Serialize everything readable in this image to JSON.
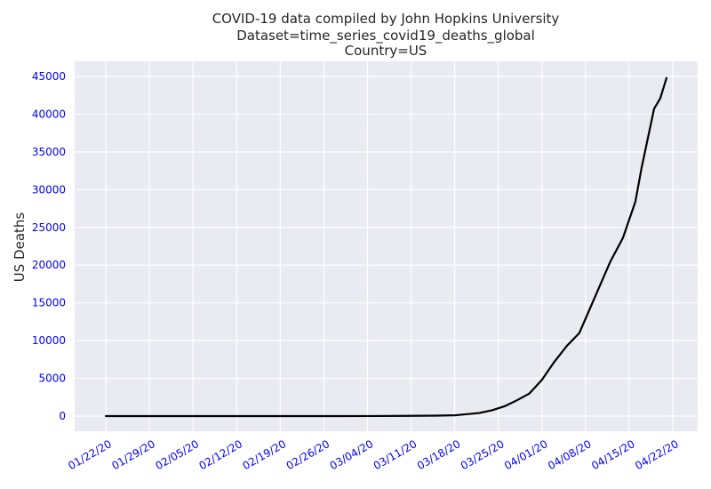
{
  "chart_data": {
    "type": "line",
    "title": [
      "COVID-19 data compiled by John Hopkins University",
      "Dataset=time_series_covid19_deaths_global",
      "Country=US"
    ],
    "xlabel": "",
    "ylabel": "US Deaths",
    "x_ticks": [
      "01/22/20",
      "01/29/20",
      "02/05/20",
      "02/12/20",
      "02/19/20",
      "02/26/20",
      "03/04/20",
      "03/11/20",
      "03/18/20",
      "03/25/20",
      "04/01/20",
      "04/08/20",
      "04/15/20",
      "04/22/20"
    ],
    "y_ticks": [
      "0",
      "5000",
      "10000",
      "15000",
      "20000",
      "25000",
      "30000",
      "35000",
      "40000",
      "45000"
    ],
    "ylim": [
      -2000,
      47000
    ],
    "xlim": [
      "01/17/20",
      "04/26/20"
    ],
    "grid": true,
    "series": [
      {
        "color": "#000000",
        "x": [
          "01/22/20",
          "02/29/20",
          "03/05/20",
          "03/10/20",
          "03/15/20",
          "03/18/20",
          "03/20/20",
          "03/22/20",
          "03/24/20",
          "03/26/20",
          "03/28/20",
          "03/30/20",
          "04/01/20",
          "04/03/20",
          "04/05/20",
          "04/07/20",
          "04/08/20",
          "04/10/20",
          "04/12/20",
          "04/14/20",
          "04/15/20",
          "04/16/20",
          "04/17/20",
          "04/19/20",
          "04/20/20",
          "04/21/20"
        ],
        "y": [
          0,
          1,
          11,
          28,
          63,
          108,
          260,
          420,
          780,
          1300,
          2100,
          3000,
          4800,
          7200,
          9300,
          11000,
          12900,
          16700,
          20500,
          23600,
          26000,
          28400,
          32900,
          40700,
          42100,
          44800
        ]
      }
    ]
  },
  "colors": {
    "plot_background": "#eaeaf2",
    "grid": "#ffffff",
    "tick_label": "#0000ff",
    "line": "#000000"
  }
}
